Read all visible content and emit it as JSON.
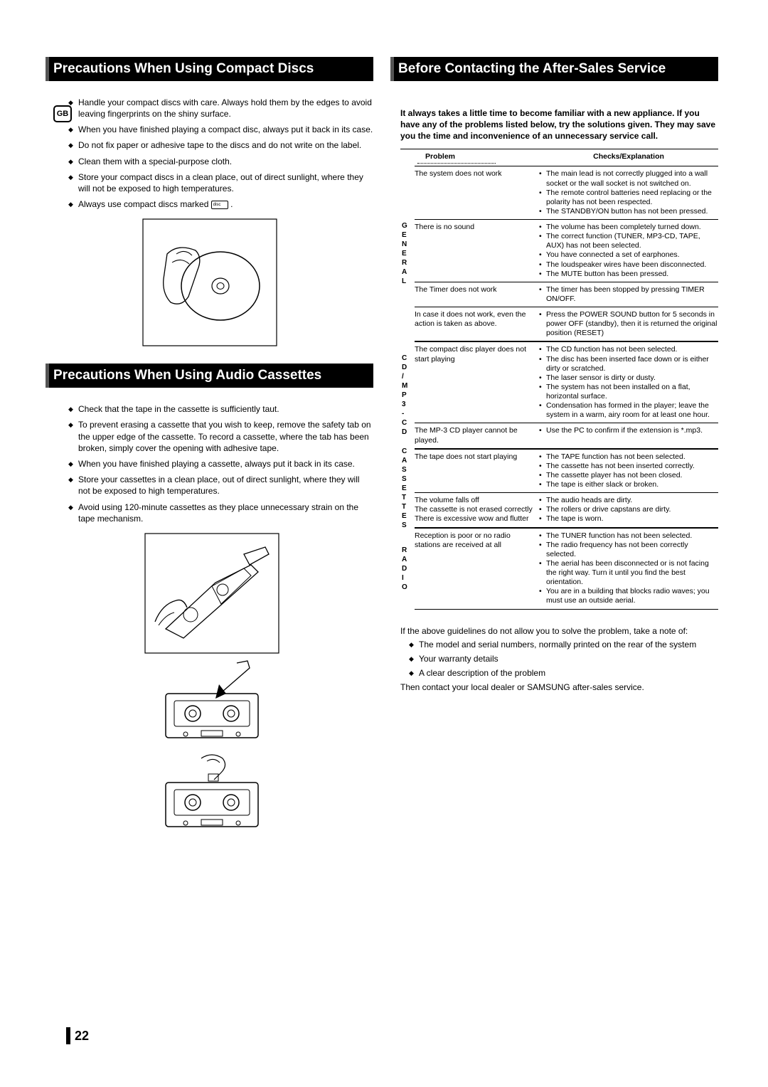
{
  "badge": "GB",
  "page_number": "22",
  "left": {
    "title1": "Precautions When Using Compact Discs",
    "bullets1": [
      "Handle your compact discs with care. Always hold them by the edges to avoid leaving fingerprints on the shiny surface.",
      "When you have finished playing a compact disc, always put it back in its case.",
      "Do not fix paper or adhesive tape to the discs and do not write on the label.",
      "Clean them with a special-purpose cloth.",
      "Store your compact discs in a clean place, out of direct sunlight, where they will not be exposed to high temperatures.",
      "Always use compact discs marked         ."
    ],
    "title2": "Precautions When Using Audio Cassettes",
    "bullets2": [
      "Check that the tape in the cassette is sufficiently taut.",
      "To prevent erasing a cassette that you wish to keep, remove the safety tab on the upper edge of the cassette. To record a cassette, where the tab has been broken, simply cover the opening with adhesive tape.",
      "When you have finished playing a cassette, always put it back in its case.",
      "Store your cassettes in a clean place, out of direct sunlight, where they will not be exposed to high temperatures.",
      "Avoid using 120-minute cassettes as they place unnecessary strain on the tape mechanism."
    ]
  },
  "right": {
    "title": "Before Contacting the After-Sales Service",
    "intro": "It always takes a little time to become familiar with a new appliance. If you have any of the problems listed below, try the solutions given. They may save you the time and inconvenience of an unnecessary service call.",
    "head_problem": "Problem",
    "head_checks": "Checks/Explanation",
    "groups": [
      {
        "label": "GENERAL",
        "rows": [
          {
            "p": "The system does not work",
            "c": [
              "The main lead is not correctly plugged into a wall socket or the wall socket is not switched on.",
              "The remote control batteries need replacing or the polarity has not been respected.",
              "The STANDBY/ON button has not been pressed."
            ]
          },
          {
            "p": "There is no sound",
            "c": [
              "The volume has been completely turned down.",
              "The correct function (TUNER, MP3-CD, TAPE, AUX) has not been selected.",
              "You have connected a set of earphones.",
              "The loudspeaker wires have been disconnected.",
              "The MUTE button has been pressed."
            ]
          },
          {
            "p": "The Timer does not work",
            "c": [
              "The timer has been stopped by pressing TIMER ON/OFF."
            ]
          },
          {
            "p": "In case it does not work, even the action is taken as above.",
            "c": [
              "Press the POWER SOUND button for 5 seconds in power OFF (standby), then it is returned the original position (RESET)"
            ]
          }
        ]
      },
      {
        "label": "CD/MP3-CD",
        "rows": [
          {
            "p": "The compact disc player does not start playing",
            "c": [
              "The CD function has not been selected.",
              "The disc has been inserted face down or is either dirty or scratched.",
              "The laser sensor is dirty or dusty.",
              "The system has not been installed on a flat, horizontal surface.",
              "Condensation has formed in the player; leave the system in a warm, airy room for at least one hour."
            ]
          },
          {
            "p": "The MP-3 CD player cannot be played.",
            "c": [
              "Use the PC to confirm if the extension is *.mp3."
            ]
          }
        ]
      },
      {
        "label": "CASSETTES",
        "rows": [
          {
            "p": "The tape does not start playing",
            "c": [
              "The TAPE function has not been selected.",
              "The cassette has not been inserted correctly.",
              "The cassette player has not been closed.",
              "The tape is either slack or broken."
            ]
          },
          {
            "p": "The volume falls off\nThe cassette is not erased correctly\nThere is excessive wow and flutter",
            "c": [
              "The audio heads are dirty.",
              "The rollers or drive capstans are dirty.",
              "The tape is worn."
            ]
          }
        ]
      },
      {
        "label": "RADIO",
        "rows": [
          {
            "p": "Reception is poor or no radio stations are received at all",
            "c": [
              "The TUNER function has not been selected.",
              "The radio frequency has not been correctly selected.",
              "The aerial has been disconnected or is not facing the right way. Turn it until you find the best orientation.",
              "You are in a building that blocks radio waves; you must use an outside aerial."
            ]
          }
        ]
      }
    ],
    "footer1": "If the above guidelines do not allow you to solve the problem, take a note of:",
    "footer_bullets": [
      "The model and serial numbers, normally printed on the rear of the system",
      "Your warranty details",
      "A clear description of the problem"
    ],
    "footer2": "Then contact your local dealer or SAMSUNG after-sales service."
  }
}
